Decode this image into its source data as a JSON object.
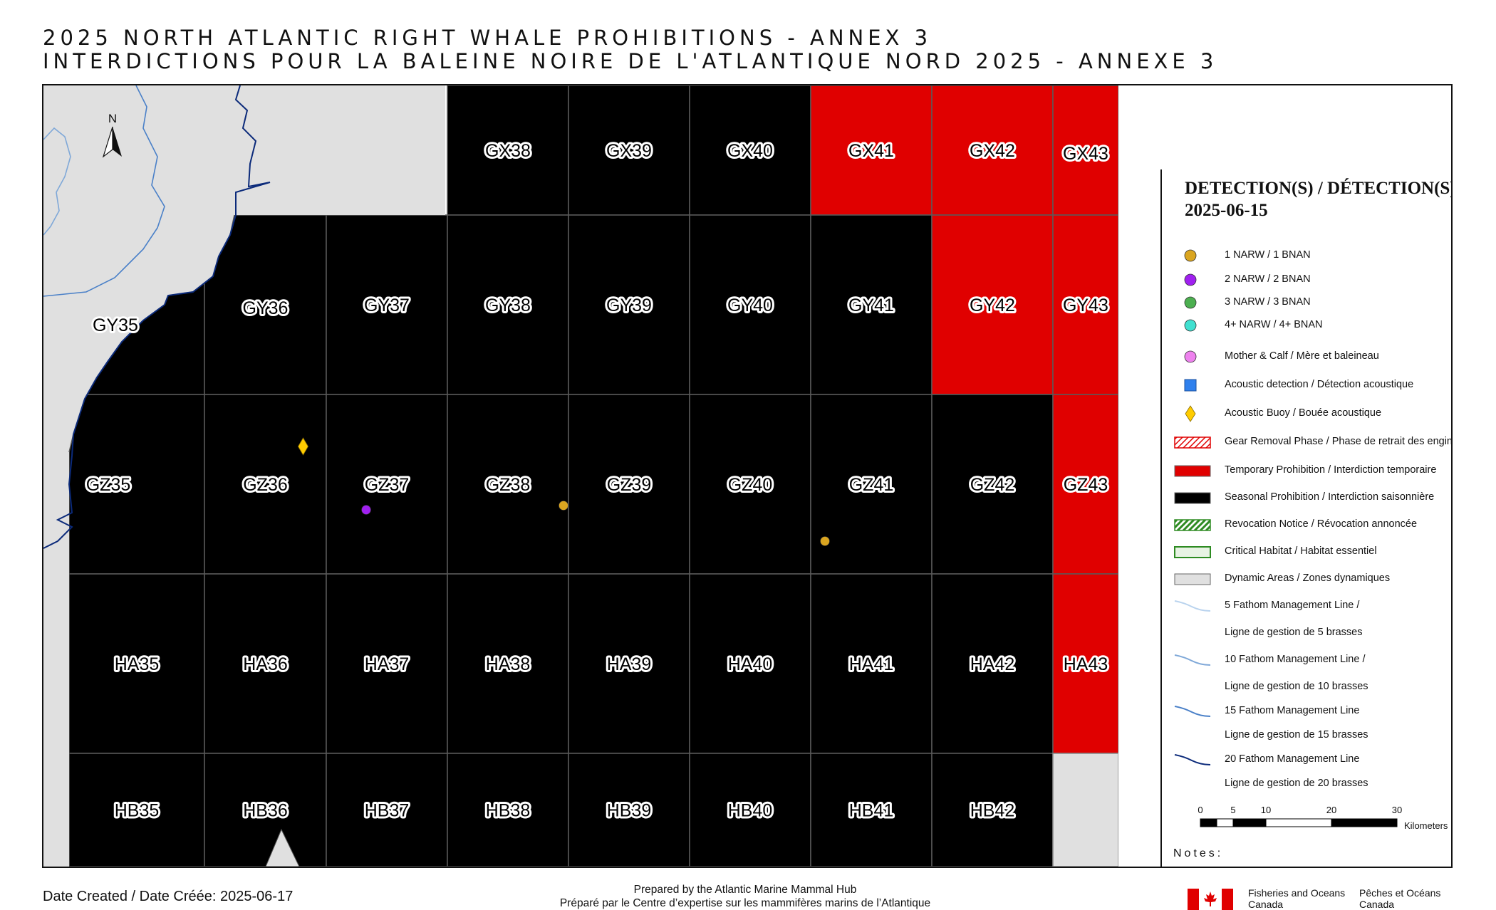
{
  "title": {
    "line1": "2025 NORTH ATLANTIC RIGHT WHALE PROHIBITIONS - ANNEX 3",
    "line2": "INTERDICTIONS POUR LA BALEINE NOIRE DE L'ATLANTIQUE NORD 2025 - ANNEXE 3"
  },
  "map": {
    "north_label": "N",
    "grid_rows": [
      "GX",
      "GY",
      "GZ",
      "HA",
      "HB"
    ],
    "grid_cols": [
      "35",
      "36",
      "37",
      "38",
      "39",
      "40",
      "41",
      "42",
      "43"
    ],
    "cells": {
      "GX": [
        "",
        "",
        "",
        "GX38",
        "GX39",
        "GX40",
        "GX41",
        "GX42",
        "GX43"
      ],
      "GY": [
        "GY35",
        "GY36",
        "GY37",
        "GY38",
        "GY39",
        "GY40",
        "GY41",
        "GY42",
        "GY43"
      ],
      "GZ": [
        "GZ35",
        "GZ36",
        "GZ37",
        "GZ38",
        "GZ39",
        "GZ40",
        "GZ41",
        "GZ42",
        "GZ43"
      ],
      "HA": [
        "HA35",
        "HA36",
        "HA37",
        "HA38",
        "HA39",
        "HA40",
        "HA41",
        "HA42",
        "HA43"
      ],
      "HB": [
        "HB35",
        "HB36",
        "HB37",
        "HB38",
        "HB39",
        "HB40",
        "HB41",
        "HB42",
        ""
      ]
    },
    "status": {
      "GX": [
        "land",
        "land",
        "land",
        "seasonal",
        "seasonal",
        "seasonal",
        "temporary",
        "temporary",
        "temporary"
      ],
      "GY": [
        "seasonal",
        "seasonal",
        "seasonal",
        "seasonal",
        "seasonal",
        "seasonal",
        "seasonal",
        "temporary",
        "temporary"
      ],
      "GZ": [
        "seasonal",
        "seasonal",
        "seasonal",
        "seasonal",
        "seasonal",
        "seasonal",
        "seasonal",
        "seasonal",
        "temporary"
      ],
      "HA": [
        "seasonal",
        "seasonal",
        "seasonal",
        "seasonal",
        "seasonal",
        "seasonal",
        "seasonal",
        "seasonal",
        "temporary"
      ],
      "HB": [
        "seasonal",
        "seasonal",
        "seasonal",
        "seasonal",
        "seasonal",
        "seasonal",
        "seasonal",
        "seasonal",
        "dynamic"
      ]
    },
    "detections": [
      {
        "cell": "GZ37",
        "type": "2 NARW / 2 BNAN",
        "color": "#a020f0"
      },
      {
        "cell": "GZ38",
        "type": "1 NARW / 1 BNAN",
        "color": "#daa520"
      },
      {
        "cell": "GZ41",
        "type": "1 NARW / 1 BNAN",
        "color": "#daa520"
      }
    ],
    "buoys": [
      {
        "cell": "GZ36",
        "type": "Acoustic Buoy / Bouée acoustique",
        "color": "#ffcc00"
      }
    ]
  },
  "legend": {
    "heading_line1": "DETECTION(S) / DÉTECTION(S):",
    "heading_line2": "2025-06-15",
    "items": [
      {
        "label": "1 NARW / 1 BNAN",
        "symbol": "circle",
        "color": "#daa520"
      },
      {
        "label": "2 NARW / 2 BNAN",
        "symbol": "circle",
        "color": "#a020f0"
      },
      {
        "label": "3 NARW / 3 BNAN",
        "symbol": "circle",
        "color": "#4caf50"
      },
      {
        "label": "4+ NARW / 4+ BNAN",
        "symbol": "circle",
        "color": "#40e0d0"
      },
      {
        "label": "Mother & Calf / Mère et baleineau",
        "symbol": "circle",
        "color": "#ee82ee"
      },
      {
        "label": "Acoustic detection / Détection acoustique",
        "symbol": "square",
        "color": "#2f80ed"
      },
      {
        "label": "Acoustic Buoy / Bouée acoustique",
        "symbol": "diamond",
        "color": "#ffcc00"
      },
      {
        "label": "Gear Removal Phase / Phase de retrait des engins",
        "symbol": "hatch-red",
        "color": "#e00000"
      },
      {
        "label": "Temporary Prohibition / Interdiction temporaire",
        "symbol": "fill",
        "color": "#e00000"
      },
      {
        "label": "Seasonal Prohibition / Interdiction saisonnière",
        "symbol": "fill",
        "color": "#000000"
      },
      {
        "label": "Revocation Notice / Révocation annoncée",
        "symbol": "hatch-green",
        "color": "#2e8b22"
      },
      {
        "label": "Critical Habitat / Habitat essentiel",
        "symbol": "outline",
        "color": "#2e8b22"
      },
      {
        "label": "Dynamic Areas / Zones dynamiques",
        "symbol": "fill",
        "color": "#e0e0e0"
      },
      {
        "label": "5 Fathom Management Line /",
        "symbol": "line",
        "color": "#b9d3ee"
      },
      {
        "label": "Ligne de gestion de 5 brasses",
        "symbol": "none",
        "color": ""
      },
      {
        "label": "10 Fathom Management Line /",
        "symbol": "line",
        "color": "#7fa8d8"
      },
      {
        "label": "Ligne de gestion de 10 brasses",
        "symbol": "none",
        "color": ""
      },
      {
        "label": "15 Fathom Management Line",
        "symbol": "line",
        "color": "#4a80c8"
      },
      {
        "label": "Ligne de gestion de 15 brasses",
        "symbol": "none",
        "color": ""
      },
      {
        "label": "20 Fathom Management Line",
        "symbol": "line",
        "color": "#0b2a7a"
      },
      {
        "label": "Ligne de gestion de 20 brasses",
        "symbol": "none",
        "color": ""
      }
    ],
    "scale": {
      "ticks": [
        "0",
        "5",
        "10",
        "20",
        "30"
      ],
      "units": "Kilometers"
    },
    "notes_label": "Notes:"
  },
  "colors": {
    "seasonal": "#000000",
    "temporary": "#e00000",
    "land": "#e0e0e0",
    "dynamic": "#e0e0e0",
    "grid_line": "#5a5a5a"
  },
  "footer": {
    "date_created": "Date Created / Date Créée: 2025-06-17",
    "prepared_en": "Prepared by the Atlantic Marine Mammal Hub",
    "prepared_fr": "Préparé par le Centre d’expertise sur les mammifères marins de l’Atlantique",
    "dept_en_line1": "Fisheries and Oceans",
    "dept_en_line2": "Canada",
    "dept_fr_line1": "Pêches et Océans",
    "dept_fr_line2": "Canada"
  }
}
